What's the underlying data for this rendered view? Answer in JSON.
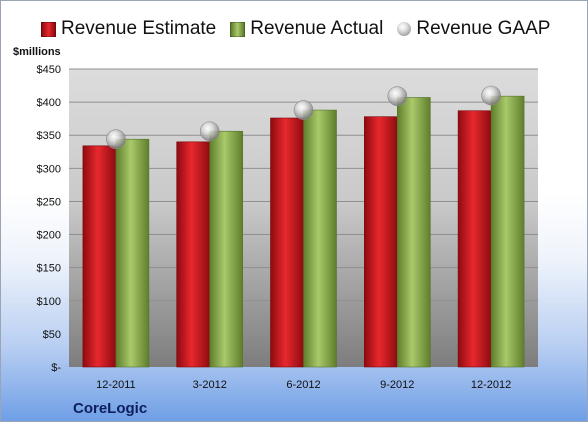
{
  "chart_data": {
    "type": "bar",
    "unit_label": "$millions",
    "categories": [
      "12-2011",
      "3-2012",
      "6-2012",
      "9-2012",
      "12-2012"
    ],
    "series": [
      {
        "name": "Revenue Estimate",
        "type": "bar",
        "color": "#c8151b",
        "values": [
          334,
          340,
          376,
          378,
          387
        ]
      },
      {
        "name": "Revenue Actual",
        "type": "bar",
        "color": "#8cad4f",
        "values": [
          344,
          356,
          388,
          407,
          409
        ]
      },
      {
        "name": "Revenue GAAP",
        "type": "marker",
        "color": "#b8b8b8",
        "values": [
          344,
          356,
          388,
          409,
          410
        ]
      }
    ],
    "y_ticks": [
      "$-",
      "$50",
      "$100",
      "$150",
      "$200",
      "$250",
      "$300",
      "$350",
      "$400",
      "$450"
    ],
    "ylim": [
      0,
      450
    ],
    "grid": true,
    "legend_position": "top"
  },
  "company": "CoreLogic"
}
